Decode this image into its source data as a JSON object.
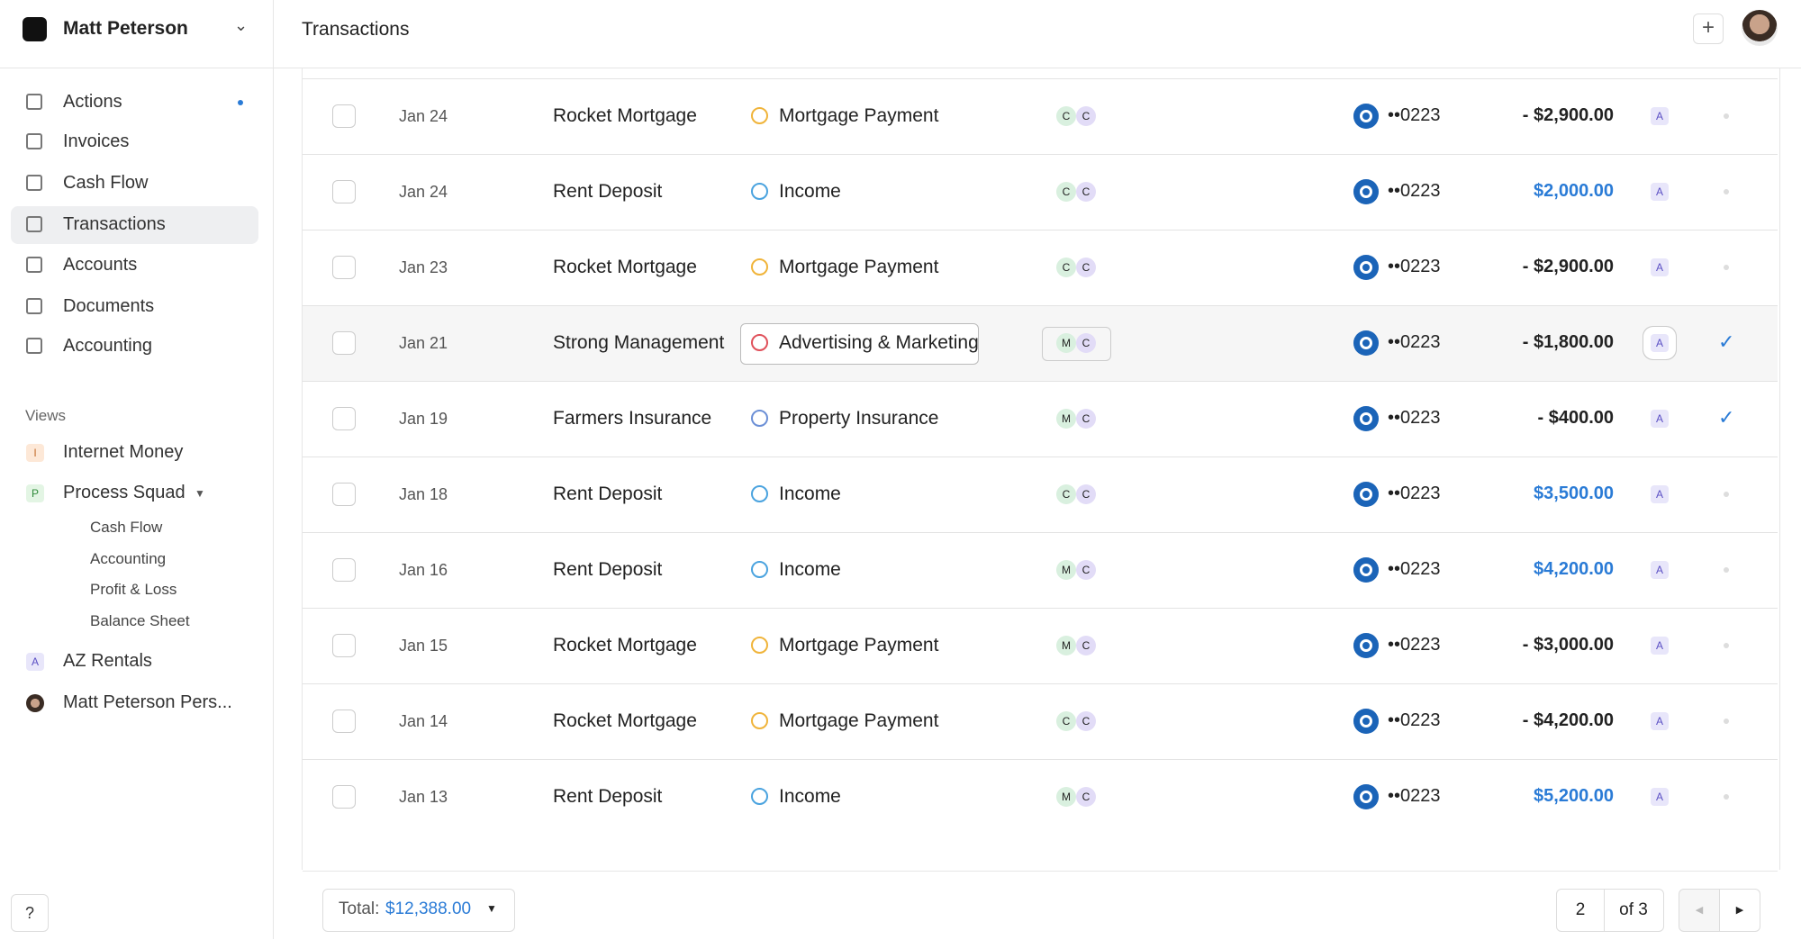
{
  "sidebar": {
    "account": "Matt Peterson",
    "nav": [
      "Actions",
      "Invoices",
      "Cash Flow",
      "Transactions",
      "Accounts",
      "Documents",
      "Accounting"
    ],
    "views_heading": "Views",
    "views": [
      {
        "badge": "I",
        "label": "Internet Money"
      },
      {
        "badge": "P",
        "label": "Process Squad",
        "children": [
          "Cash Flow",
          "Accounting",
          "Profit & Loss",
          "Balance Sheet"
        ]
      },
      {
        "badge": "A",
        "label": "AZ Rentals"
      },
      {
        "label": "Matt Peterson Pers..."
      }
    ]
  },
  "header": {
    "title": "Transactions"
  },
  "table": {
    "rows": [
      {
        "date": "Jan 24",
        "merchant": "Rocket Mortgage",
        "category": "Mortgage Payment",
        "tags": [
          "C",
          "C"
        ],
        "card": "••0223",
        "amount": "- $2,900.00",
        "entity": "A"
      },
      {
        "date": "Jan 24",
        "merchant": "Rent Deposit",
        "category": "Income",
        "tags": [
          "C",
          "C"
        ],
        "card": "••0223",
        "amount": "$2,000.00",
        "entity": "A"
      },
      {
        "date": "Jan 23",
        "merchant": "Rocket Mortgage",
        "category": "Mortgage Payment",
        "tags": [
          "C",
          "C"
        ],
        "card": "••0223",
        "amount": "- $2,900.00",
        "entity": "A"
      },
      {
        "date": "Jan 21",
        "merchant": "Strong Management",
        "category": "Advertising & Marketing",
        "tags": [
          "M",
          "C"
        ],
        "card": "••0223",
        "amount": "- $1,800.00",
        "entity": "A"
      },
      {
        "date": "Jan 19",
        "merchant": "Farmers Insurance",
        "category": "Property Insurance",
        "tags": [
          "M",
          "C"
        ],
        "card": "••0223",
        "amount": "- $400.00",
        "entity": "A"
      },
      {
        "date": "Jan 18",
        "merchant": "Rent Deposit",
        "category": "Income",
        "tags": [
          "C",
          "C"
        ],
        "card": "••0223",
        "amount": "$3,500.00",
        "entity": "A"
      },
      {
        "date": "Jan 16",
        "merchant": "Rent Deposit",
        "category": "Income",
        "tags": [
          "M",
          "C"
        ],
        "card": "••0223",
        "amount": "$4,200.00",
        "entity": "A"
      },
      {
        "date": "Jan 15",
        "merchant": "Rocket Mortgage",
        "category": "Mortgage Payment",
        "tags": [
          "M",
          "C"
        ],
        "card": "••0223",
        "amount": "- $3,000.00",
        "entity": "A"
      },
      {
        "date": "Jan 14",
        "merchant": "Rocket Mortgage",
        "category": "Mortgage Payment",
        "tags": [
          "C",
          "C"
        ],
        "card": "••0223",
        "amount": "- $4,200.00",
        "entity": "A"
      },
      {
        "date": "Jan 13",
        "merchant": "Rent Deposit",
        "category": "Income",
        "tags": [
          "M",
          "C"
        ],
        "card": "••0223",
        "amount": "$5,200.00",
        "entity": "A"
      }
    ]
  },
  "footer": {
    "total_label": "Total:",
    "total": "$12,388.00",
    "page": "2",
    "page_count": "of 3"
  }
}
